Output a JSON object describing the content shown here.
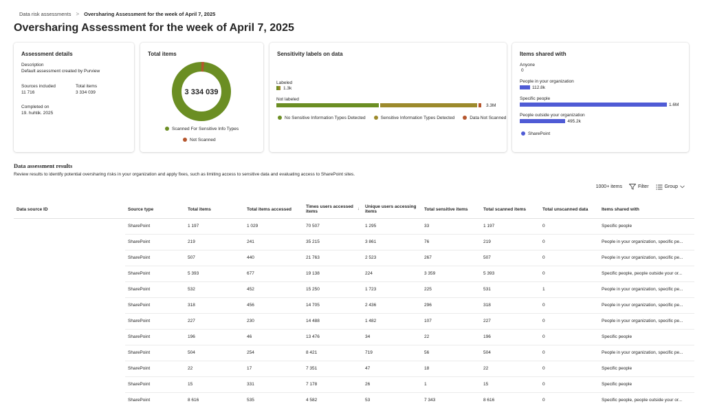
{
  "breadcrumb": {
    "parent": "Data risk assessments",
    "separator": ">",
    "current": "Oversharing Assessment for the week of April 7, 2025"
  },
  "page_title": "Oversharing Assessment for the week of April 7, 2025",
  "assessment_details": {
    "title": "Assessment details",
    "description_label": "Description",
    "description_value": "Default assessment created by Purview",
    "sources_label": "Sources included",
    "sources_value": "11 716",
    "total_items_label": "Total items",
    "total_items_value": "3 334 039",
    "completed_label": "Completed on",
    "completed_value": "19. huhtik. 2025"
  },
  "total_items_card": {
    "title": "Total items",
    "center_value": "3 334 039",
    "legend": [
      {
        "label": "Scanned For Sensitive Info Types",
        "color": "#6b8e23"
      },
      {
        "label": "Not Scanned",
        "color": "#b5562d"
      }
    ],
    "donut": {
      "scanned_fraction": 0.985,
      "not_scanned_fraction": 0.015
    }
  },
  "sensitivity_labels": {
    "title": "Sensitivity labels on data",
    "labeled_label": "Labeled",
    "labeled_value": "1.3k",
    "not_labeled_label": "Not labeled",
    "not_labeled_value": "3.3M",
    "not_labeled_segments": [
      {
        "name": "No Sensitive Information Types Detected",
        "fraction": 0.5,
        "color": "#6b8e23"
      },
      {
        "name": "Sensitive Information Types Detected",
        "fraction": 0.47,
        "color": "#9c8a2c"
      },
      {
        "name": "Data Not Scanned",
        "fraction": 0.015,
        "color": "#b5562d"
      }
    ],
    "legend": [
      {
        "label": "No Sensitive Information Types Detected",
        "color": "#6b8e23"
      },
      {
        "label": "Sensitive Information Types Detected",
        "color": "#9c8a2c"
      },
      {
        "label": "Data Not Scanned",
        "color": "#b5562d"
      }
    ]
  },
  "items_shared": {
    "title": "Items shared with",
    "rows": [
      {
        "label": "Anyone",
        "value": "0",
        "fraction": 0
      },
      {
        "label": "People in your organization",
        "value": "112.8k",
        "fraction": 0.07
      },
      {
        "label": "Specific people",
        "value": "1.6M",
        "fraction": 1.0
      },
      {
        "label": "People outside your organization",
        "value": "495.2k",
        "fraction": 0.31
      }
    ],
    "legend": "SharePoint",
    "bar_color": "#4f5bd5"
  },
  "results": {
    "title": "Data assessment results",
    "description": "Review results to identify potential oversharing risks in your organization and apply fixes, such as limiting access to sensitive data and evaluating access to SharePoint sites.",
    "count": "1000+ items",
    "filter_label": "Filter",
    "group_label": "Group",
    "columns": [
      "Data source ID",
      "Source type",
      "Total items",
      "Total items accessed",
      "Times users accessed items",
      "Unique users accessing items",
      "Total sensitive items",
      "Total scanned items",
      "Total unscanned data",
      "Items shared with"
    ],
    "rows": [
      [
        "",
        "SharePoint",
        "1 197",
        "1 029",
        "70 507",
        "1 295",
        "33",
        "1 197",
        "0",
        "Specific people"
      ],
      [
        "",
        "SharePoint",
        "219",
        "241",
        "35 215",
        "3 861",
        "76",
        "219",
        "0",
        "People in your organization, specific pe..."
      ],
      [
        "",
        "SharePoint",
        "507",
        "440",
        "21 763",
        "2 523",
        "267",
        "507",
        "0",
        "People in your organization, specific pe..."
      ],
      [
        "",
        "SharePoint",
        "5 393",
        "677",
        "19 138",
        "224",
        "3 359",
        "5 393",
        "0",
        "Specific people, people outside your or..."
      ],
      [
        "",
        "SharePoint",
        "532",
        "452",
        "15 250",
        "1 723",
        "225",
        "531",
        "1",
        "People in your organization, specific pe..."
      ],
      [
        "",
        "SharePoint",
        "318",
        "456",
        "14 705",
        "2 436",
        "296",
        "318",
        "0",
        "People in your organization, specific pe..."
      ],
      [
        "",
        "SharePoint",
        "227",
        "230",
        "14 488",
        "1 482",
        "107",
        "227",
        "0",
        "People in your organization, specific pe..."
      ],
      [
        "",
        "SharePoint",
        "196",
        "46",
        "13 476",
        "34",
        "22",
        "196",
        "0",
        "Specific people"
      ],
      [
        "",
        "SharePoint",
        "504",
        "254",
        "8 421",
        "719",
        "56",
        "504",
        "0",
        "People in your organization, specific pe..."
      ],
      [
        "",
        "SharePoint",
        "22",
        "17",
        "7 351",
        "47",
        "18",
        "22",
        "0",
        "Specific people"
      ],
      [
        "",
        "SharePoint",
        "15",
        "331",
        "7 178",
        "26",
        "1",
        "15",
        "0",
        "Specific people"
      ],
      [
        "",
        "SharePoint",
        "8 616",
        "535",
        "4 582",
        "53",
        "7 343",
        "8 616",
        "0",
        "Specific people, people outside your or..."
      ]
    ]
  }
}
